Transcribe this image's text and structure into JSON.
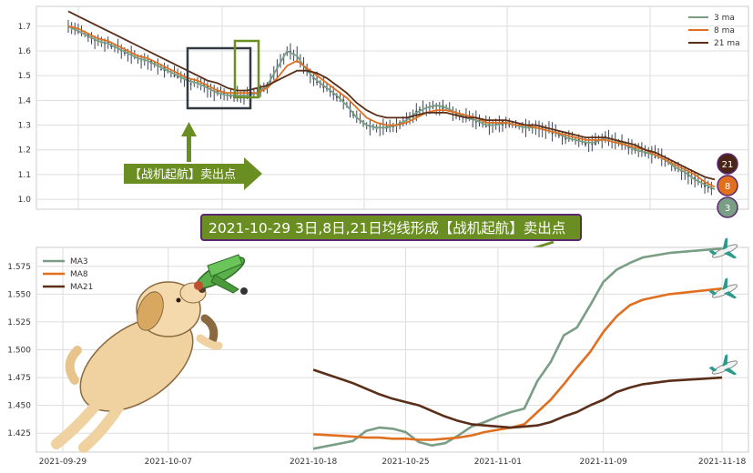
{
  "colors": {
    "ma3": "#7a9e85",
    "ma8": "#e07020",
    "ma21": "#5a2e18",
    "candle": "#3a4456",
    "annotation_green": "#6b8e23",
    "box_dark": "#333a44",
    "banner_border": "#5a2870"
  },
  "banner": {
    "text": "2021-10-29 3日,8日,21日均线形成【战机起航】卖出点"
  },
  "arrow_label": {
    "text": "【战机起航】卖出点"
  },
  "badges": {
    "ma21": "21",
    "ma8": "8",
    "ma3": "3"
  },
  "chart_data": [
    {
      "type": "line",
      "subtype": "candlestick-with-moving-averages",
      "legend": [
        "3 ma",
        "8 ma",
        "21 ma"
      ],
      "legend_position": "top-right",
      "grid": true,
      "ylim": [
        0.96,
        1.78
      ],
      "yticks": [
        "1.0",
        "1.1",
        "1.2",
        "1.3",
        "1.4",
        "1.5",
        "1.6",
        "1.7"
      ],
      "series": [
        {
          "name": "3 ma",
          "values": [
            1.7,
            1.68,
            1.66,
            1.64,
            1.63,
            1.61,
            1.59,
            1.57,
            1.56,
            1.54,
            1.52,
            1.5,
            1.48,
            1.47,
            1.45,
            1.43,
            1.42,
            1.42,
            1.42,
            1.43,
            1.46,
            1.53,
            1.6,
            1.58,
            1.52,
            1.48,
            1.45,
            1.42,
            1.38,
            1.33,
            1.3,
            1.29,
            1.29,
            1.3,
            1.32,
            1.35,
            1.37,
            1.38,
            1.37,
            1.35,
            1.33,
            1.32,
            1.3,
            1.3,
            1.31,
            1.3,
            1.29,
            1.29,
            1.28,
            1.27,
            1.25,
            1.24,
            1.23,
            1.23,
            1.25,
            1.24,
            1.22,
            1.2,
            1.19,
            1.18,
            1.16,
            1.13,
            1.11,
            1.08,
            1.06,
            1.04
          ]
        },
        {
          "name": "8 ma",
          "values": [
            1.7,
            1.69,
            1.67,
            1.65,
            1.64,
            1.62,
            1.6,
            1.58,
            1.57,
            1.55,
            1.53,
            1.51,
            1.49,
            1.48,
            1.46,
            1.44,
            1.43,
            1.43,
            1.43,
            1.43,
            1.45,
            1.49,
            1.54,
            1.56,
            1.53,
            1.5,
            1.47,
            1.44,
            1.41,
            1.37,
            1.33,
            1.31,
            1.3,
            1.3,
            1.31,
            1.33,
            1.35,
            1.36,
            1.36,
            1.35,
            1.34,
            1.33,
            1.31,
            1.31,
            1.31,
            1.3,
            1.3,
            1.29,
            1.28,
            1.27,
            1.26,
            1.25,
            1.24,
            1.24,
            1.24,
            1.23,
            1.22,
            1.21,
            1.2,
            1.18,
            1.16,
            1.14,
            1.12,
            1.1,
            1.07,
            1.05
          ]
        },
        {
          "name": "21 ma",
          "values": [
            1.76,
            1.74,
            1.72,
            1.7,
            1.68,
            1.66,
            1.64,
            1.62,
            1.6,
            1.58,
            1.56,
            1.54,
            1.52,
            1.5,
            1.48,
            1.47,
            1.45,
            1.44,
            1.44,
            1.45,
            1.46,
            1.48,
            1.5,
            1.52,
            1.52,
            1.51,
            1.49,
            1.46,
            1.43,
            1.39,
            1.36,
            1.34,
            1.33,
            1.33,
            1.33,
            1.34,
            1.35,
            1.35,
            1.35,
            1.34,
            1.33,
            1.33,
            1.32,
            1.32,
            1.32,
            1.31,
            1.3,
            1.3,
            1.29,
            1.28,
            1.27,
            1.26,
            1.25,
            1.25,
            1.25,
            1.24,
            1.23,
            1.22,
            1.2,
            1.19,
            1.17,
            1.15,
            1.13,
            1.11,
            1.09,
            1.08
          ]
        }
      ]
    },
    {
      "type": "line",
      "title": "",
      "legend": [
        "MA3",
        "MA8",
        "MA21"
      ],
      "legend_position": "top-left",
      "grid": true,
      "xlim": [
        "2021-09-27",
        "2021-11-20"
      ],
      "xticks": [
        "2021-09-29",
        "2021-10-07",
        "2021-10-18",
        "2021-10-25",
        "2021-11-01",
        "2021-11-09",
        "2021-11-18"
      ],
      "ylim": [
        1.408,
        1.592
      ],
      "yticks": [
        "1.425",
        "1.450",
        "1.475",
        "1.500",
        "1.525",
        "1.550",
        "1.575"
      ],
      "x": [
        "2021-10-18",
        "2021-10-21",
        "2021-10-22",
        "2021-10-23",
        "2021-10-24",
        "2021-10-25",
        "2021-10-26",
        "2021-10-27",
        "2021-10-28",
        "2021-10-29",
        "2021-10-30",
        "2021-10-31",
        "2021-11-01",
        "2021-11-02",
        "2021-11-03",
        "2021-11-04",
        "2021-11-05",
        "2021-11-06",
        "2021-11-07",
        "2021-11-08",
        "2021-11-09",
        "2021-11-10",
        "2021-11-11",
        "2021-11-12",
        "2021-11-14",
        "2021-11-18"
      ],
      "series": [
        {
          "name": "MA3",
          "values": [
            1.411,
            1.418,
            1.427,
            1.43,
            1.429,
            1.426,
            1.417,
            1.414,
            1.416,
            1.423,
            1.431,
            1.435,
            1.44,
            1.444,
            1.447,
            1.472,
            1.489,
            1.513,
            1.52,
            1.54,
            1.561,
            1.572,
            1.578,
            1.583,
            1.587,
            1.591
          ]
        },
        {
          "name": "MA8",
          "values": [
            1.424,
            1.422,
            1.421,
            1.421,
            1.42,
            1.42,
            1.419,
            1.419,
            1.42,
            1.421,
            1.423,
            1.426,
            1.428,
            1.43,
            1.433,
            1.444,
            1.455,
            1.469,
            1.484,
            1.498,
            1.516,
            1.53,
            1.54,
            1.545,
            1.55,
            1.555
          ]
        },
        {
          "name": "MA21",
          "values": [
            1.482,
            1.47,
            1.465,
            1.46,
            1.456,
            1.453,
            1.45,
            1.445,
            1.44,
            1.436,
            1.433,
            1.432,
            1.431,
            1.43,
            1.431,
            1.432,
            1.435,
            1.44,
            1.444,
            1.45,
            1.455,
            1.462,
            1.466,
            1.469,
            1.472,
            1.475
          ]
        }
      ]
    }
  ]
}
